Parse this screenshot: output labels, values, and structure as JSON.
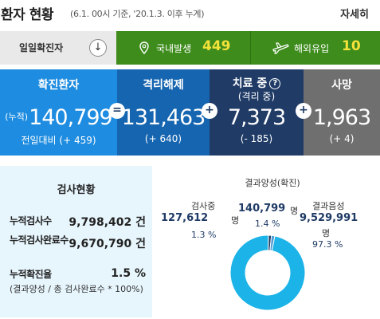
{
  "header": {
    "title": "환자 현황",
    "subtitle": "(6.1. 00시 기준, '20.1.3. 이후 누계)",
    "more_label": "자세히"
  },
  "daily": {
    "label": "일일확진자",
    "arrow_icon": "arrow-down-icon",
    "domestic": {
      "icon": "location-pin-icon",
      "label": "국내발생",
      "value": "449"
    },
    "overseas": {
      "icon": "airplane-icon",
      "label": "해외유입",
      "value": "10"
    }
  },
  "stats": {
    "confirmed": {
      "title": "확진환자",
      "prefix": "(누적)",
      "value": "140,799",
      "delta": "전일대비 (+ 459)"
    },
    "released": {
      "title": "격리해제",
      "value": "131,463",
      "delta": "(+ 640)"
    },
    "treatment": {
      "title": "치료 중",
      "sub": "(격리 중)",
      "value": "7,373",
      "delta": "(- 185)"
    },
    "death": {
      "title": "사망",
      "value": "1,963",
      "delta": "(+ 4)"
    },
    "signs": {
      "equals": "=",
      "plus1": "+",
      "plus2": "+"
    },
    "info_icon": "?"
  },
  "tests": {
    "title": "검사현황",
    "rows": [
      {
        "label": "누적검사수",
        "value": "9,798,402 건"
      },
      {
        "label": "누적검사완료수",
        "value": "9,670,790 건"
      },
      {
        "label": "누적확진율",
        "value": "1.5 %"
      }
    ],
    "note": "(결과양성 / 총 검사완료수 * 100%)"
  },
  "chart": {
    "testing": {
      "label": "검사중",
      "value": "127,612",
      "unit": "명",
      "pct": "1.3 %"
    },
    "positive": {
      "label": "결과양성(확진)",
      "value": "140,799",
      "unit": "명",
      "pct": "1.4 %"
    },
    "negative": {
      "label": "결과음성",
      "value": "9,529,991",
      "unit": "명",
      "pct": "97.3 %"
    }
  },
  "chart_data": {
    "type": "pie",
    "categories": [
      "검사중",
      "결과양성(확진)",
      "결과음성"
    ],
    "values": [
      127612,
      140799,
      9529991
    ],
    "percentages": [
      1.3,
      1.4,
      97.3
    ],
    "colors": [
      "#1f3b66",
      "#4c9ad6",
      "#1bb3e8"
    ],
    "donut": true
  },
  "colors": {
    "confirmed": "#1e8ce0",
    "released": "#1565b0",
    "treatment": "#1f3b66",
    "death": "#6f6f6f",
    "daily_green": "#3d8c1c",
    "daily_value": "#f4e23a",
    "test_bg": "#e7f6fd"
  }
}
